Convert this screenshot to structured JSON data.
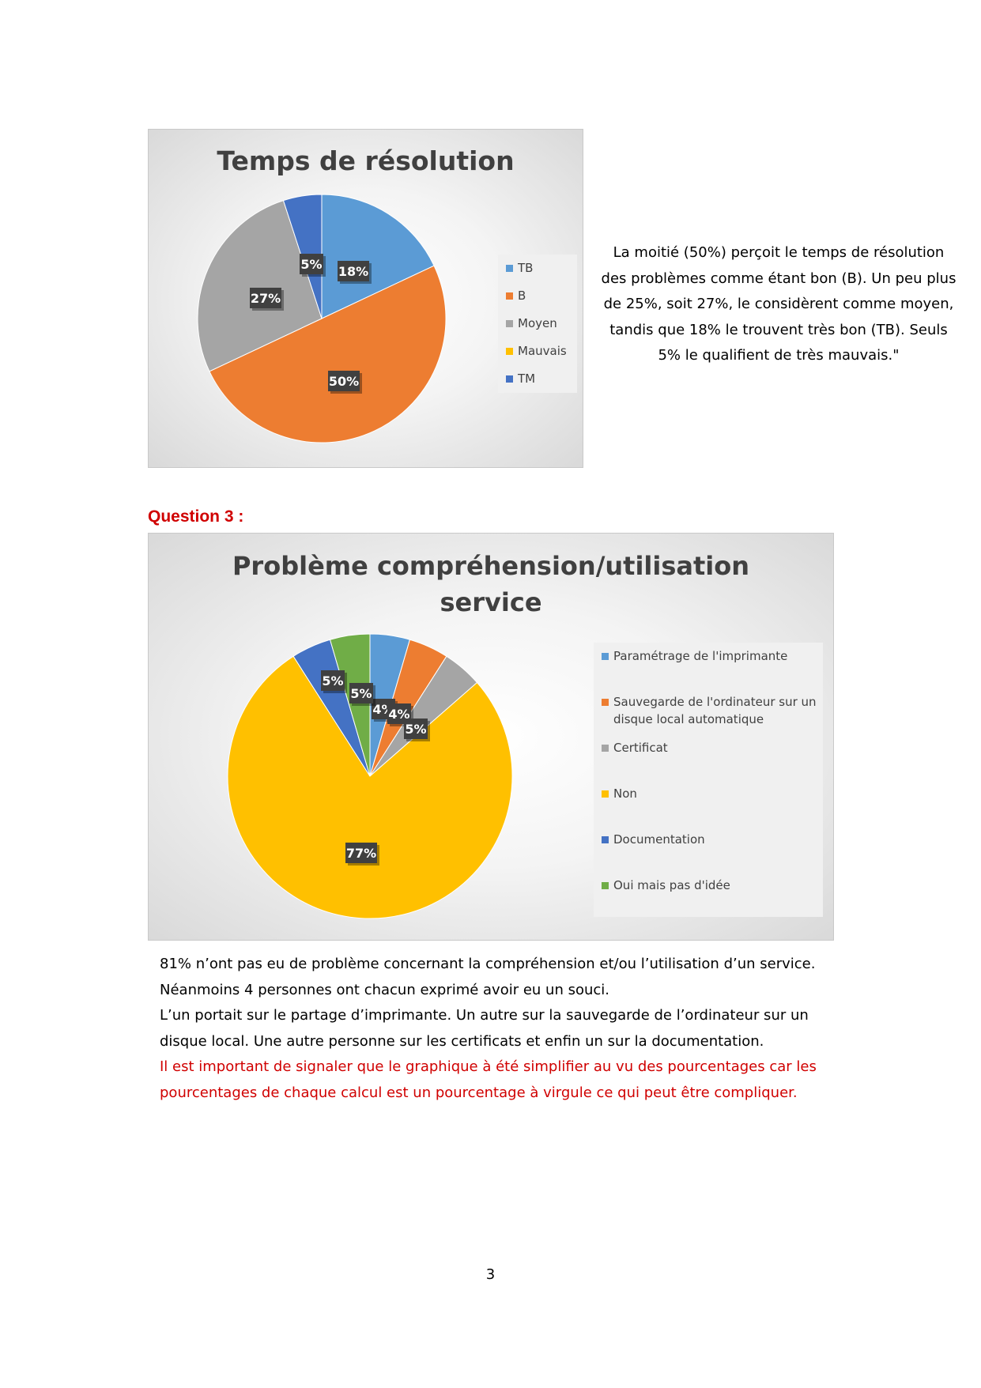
{
  "charts": {
    "resolution": {
      "title": "Temps de résolution",
      "legend": [
        "TB",
        "B",
        "Moyen",
        "Mauvais",
        "TM"
      ]
    },
    "service": {
      "title_line1": "Problème compréhension/utilisation",
      "title_line2": "service",
      "legend": [
        "Paramétrage de l'imprimante",
        "Sauvegarde de l'ordinateur sur un disque local automatique",
        "Certificat",
        "Non",
        "Documentation",
        "Oui mais pas d'idée"
      ]
    }
  },
  "chart_data": [
    {
      "type": "pie",
      "title": "Temps de résolution",
      "categories": [
        "TB",
        "B",
        "Moyen",
        "Mauvais",
        "TM"
      ],
      "values": [
        18,
        50,
        27,
        0,
        5
      ],
      "data_labels": [
        "18%",
        "50%",
        "27%",
        "",
        "5%"
      ],
      "colors": [
        "#5b9bd5",
        "#ed7d31",
        "#a5a5a5",
        "#ffc000",
        "#4472c4"
      ],
      "legend_position": "right"
    },
    {
      "type": "pie",
      "title": "Problème compréhension/utilisation service",
      "categories": [
        "Paramétrage de l'imprimante",
        "Sauvegarde de l'ordinateur sur un disque local automatique",
        "Certificat",
        "Non",
        "Documentation",
        "Oui mais pas d'idée"
      ],
      "values": [
        4.5,
        4.5,
        4.5,
        77,
        4.5,
        4.5
      ],
      "data_labels": [
        "4%",
        "4%",
        "5%",
        "77%",
        "5%",
        "5%"
      ],
      "colors": [
        "#5b9bd5",
        "#ed7d31",
        "#a5a5a5",
        "#ffc000",
        "#4472c4",
        "#70ad47"
      ],
      "legend_position": "right"
    }
  ],
  "text": {
    "summary1": [
      "La moitié (50%) perçoit le temps de résolution",
      "des problèmes comme étant bon (B). Un peu plus",
      "de 25%, soit 27%, le considèrent comme moyen,",
      "tandis que 18% le trouvent très bon (TB). Seuls",
      "5% le qualifient de très mauvais.\""
    ],
    "question_heading": "Question 3 :",
    "summary2": [
      "81% n’ont pas eu de problème concernant la compréhension et/ou l’utilisation d’un service.",
      "Néanmoins 4 personnes ont chacun exprimé avoir eu un souci.",
      "L’un portait sur le partage d’imprimante. Un autre sur la sauvegarde de l’ordinateur sur un",
      "disque local. Une autre personne sur les certificats et enfin un sur la documentation."
    ],
    "note_red": [
      "Il est important de signaler que le graphique à été simplifier au vu des pourcentages car les",
      "pourcentages de chaque calcul est un pourcentage à virgule ce qui peut être compliquer."
    ],
    "page_number": "3"
  }
}
